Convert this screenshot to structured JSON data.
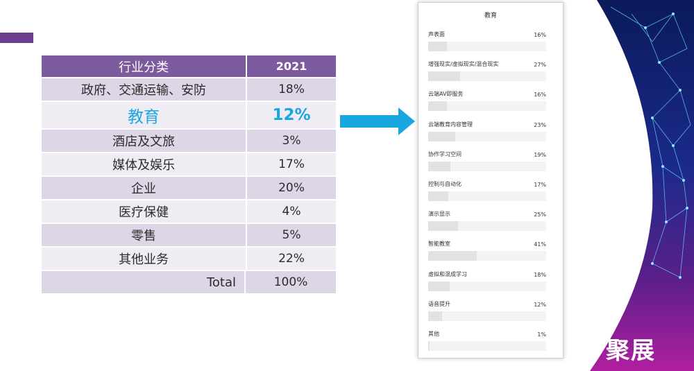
{
  "colors": {
    "accent": "#6e3f8f",
    "header_bg": "#7b5a9d",
    "highlight": "#1aa7e0",
    "arrow": "#1aa7e0"
  },
  "table": {
    "header": {
      "category": "行业分类",
      "year": "2021"
    },
    "rows": [
      {
        "category": "政府、交通运输、安防",
        "value": "18%"
      },
      {
        "category": "教育",
        "value": "12%"
      },
      {
        "category": "酒店及文旅",
        "value": "3%"
      },
      {
        "category": "媒体及娱乐",
        "value": "17%"
      },
      {
        "category": "企业",
        "value": "20%"
      },
      {
        "category": "医疗保健",
        "value": "4%"
      },
      {
        "category": "零售",
        "value": "5%"
      },
      {
        "category": "其他业务",
        "value": "22%"
      },
      {
        "category": "Total",
        "value": "100%"
      }
    ]
  },
  "panel": {
    "title": "教育",
    "items": [
      {
        "label": "声表面",
        "pct": "16%",
        "frac": 0.16
      },
      {
        "label": "增强现实/虚拟现实/混合现实",
        "pct": "27%",
        "frac": 0.27
      },
      {
        "label": "云端AV即服务",
        "pct": "16%",
        "frac": 0.16
      },
      {
        "label": "云端教育内容管理",
        "pct": "23%",
        "frac": 0.23
      },
      {
        "label": "协作学习空间",
        "pct": "19%",
        "frac": 0.19
      },
      {
        "label": "控制与自动化",
        "pct": "17%",
        "frac": 0.17
      },
      {
        "label": "演示显示",
        "pct": "25%",
        "frac": 0.25
      },
      {
        "label": "智能教室",
        "pct": "41%",
        "frac": 0.41
      },
      {
        "label": "虚拟和混成学习",
        "pct": "18%",
        "frac": 0.18
      },
      {
        "label": "语音提升",
        "pct": "12%",
        "frac": 0.12
      },
      {
        "label": "其他",
        "pct": "1%",
        "frac": 0.01
      }
    ]
  },
  "brand": {
    "text": "聚展"
  }
}
